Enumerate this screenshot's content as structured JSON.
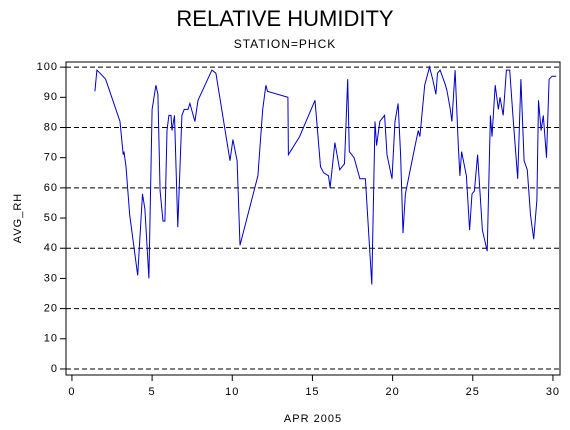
{
  "chart_data": {
    "type": "line",
    "title": "RELATIVE HUMIDITY",
    "subtitle": "STATION=PHCK",
    "x_label": "APR 2005",
    "y_label": "AVG_RH",
    "xlim": [
      -0.37,
      30.44
    ],
    "ylim": [
      -2,
      101.7
    ],
    "xticks": [
      0,
      5,
      10,
      15,
      20,
      25,
      30
    ],
    "yticks": [
      0,
      10,
      20,
      30,
      40,
      50,
      60,
      70,
      80,
      90,
      100
    ],
    "ygrid": [
      0,
      20,
      40,
      60,
      80,
      100
    ],
    "color": "#0000cc",
    "x": [
      1.43,
      1.56,
      1.75,
      2.1,
      3.0,
      3.2,
      3.25,
      3.37,
      3.6,
      4.1,
      4.4,
      4.55,
      4.8,
      5.0,
      5.24,
      5.36,
      5.5,
      5.68,
      5.8,
      5.93,
      6.05,
      6.18,
      6.24,
      6.4,
      6.6,
      6.86,
      7.0,
      7.24,
      7.36,
      7.67,
      7.86,
      8.73,
      8.98,
      9.86,
      10.04,
      10.3,
      10.48,
      11.6,
      11.9,
      12.1,
      12.2,
      13.47,
      13.5,
      14.2,
      15.16,
      15.5,
      15.7,
      16.0,
      16.1,
      16.4,
      16.7,
      17.0,
      17.2,
      17.3,
      17.6,
      17.96,
      18.3,
      18.7,
      18.9,
      19.0,
      19.2,
      19.5,
      19.65,
      19.96,
      20.15,
      20.34,
      20.5,
      20.65,
      20.8,
      21.4,
      21.6,
      21.7,
      22.0,
      22.3,
      22.5,
      22.7,
      22.8,
      22.96,
      23.3,
      23.4,
      23.6,
      23.7,
      23.9,
      24.1,
      24.2,
      24.3,
      24.6,
      24.8,
      24.95,
      25.1,
      25.3,
      25.6,
      25.9,
      26.1,
      26.2,
      26.4,
      26.6,
      26.7,
      26.9,
      27.1,
      27.3,
      27.5,
      27.8,
      28.0,
      28.2,
      28.4,
      28.6,
      28.8,
      29.0,
      29.1,
      29.26,
      29.4,
      29.6,
      29.76,
      29.95,
      30.2
    ],
    "values": [
      92,
      99,
      98,
      96,
      82,
      71,
      72,
      67,
      51,
      31,
      58,
      53,
      30,
      86,
      94,
      91,
      59,
      49,
      49,
      79,
      84,
      84,
      79,
      84,
      47,
      84,
      86,
      86,
      88,
      82,
      89,
      99,
      98,
      69,
      76,
      69,
      41,
      64,
      86,
      94,
      92,
      90,
      71,
      77,
      89,
      67,
      65,
      64,
      60,
      75,
      66,
      68,
      96,
      72,
      70,
      63,
      63,
      28,
      82,
      74,
      82,
      84,
      71,
      63,
      82,
      88,
      71,
      45,
      58,
      74,
      79,
      77,
      94,
      100,
      96,
      91,
      98,
      99,
      94,
      92,
      86,
      82,
      99,
      74,
      64,
      72,
      64,
      46,
      58,
      59,
      71,
      46,
      39,
      84,
      77,
      94,
      86,
      90,
      84,
      99,
      99,
      84,
      63,
      96,
      69,
      66,
      51,
      43,
      56,
      89,
      79,
      84,
      70,
      96,
      97,
      97
    ]
  }
}
